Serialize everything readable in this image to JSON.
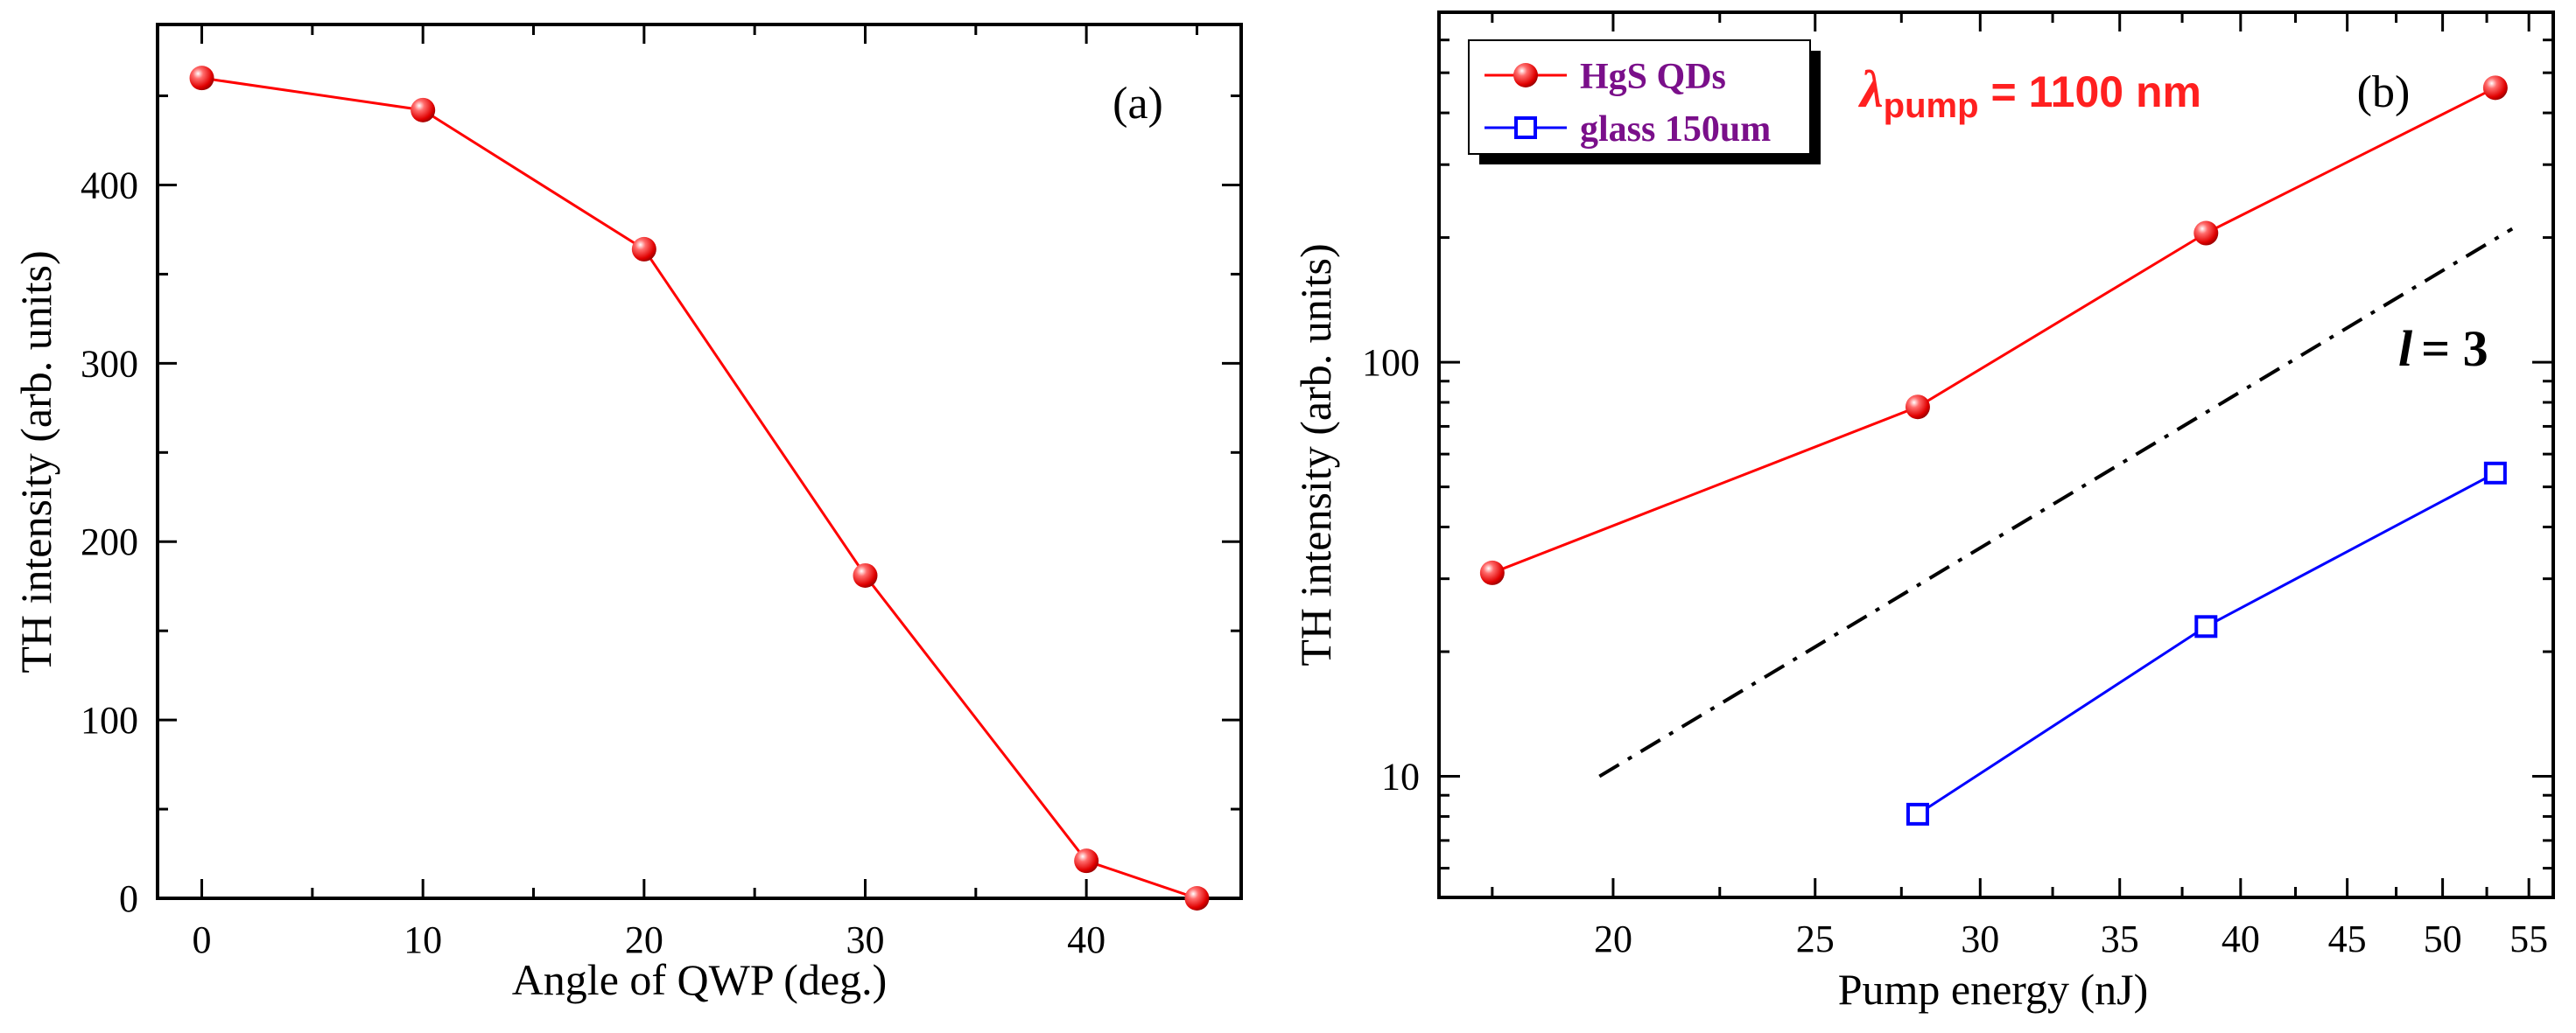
{
  "chart_data": [
    {
      "type": "line",
      "panel_label": "(a)",
      "xlabel": "Angle of QWP (deg.)",
      "ylabel": "TH intensity (arb. units)",
      "xlim": [
        -2,
        47
      ],
      "ylim": [
        0,
        490
      ],
      "xticks": [
        0,
        10,
        20,
        30,
        40
      ],
      "yticks": [
        0,
        100,
        200,
        300,
        400
      ],
      "series": [
        {
          "name": "TH intensity",
          "color": "#ff0000",
          "marker": "sphere",
          "x": [
            0,
            10,
            20,
            30,
            40,
            45
          ],
          "y": [
            460,
            442,
            364,
            181,
            21,
            0
          ]
        }
      ]
    },
    {
      "type": "line",
      "scale": "log-log",
      "panel_label": "(b)",
      "xlabel": "Pump energy (nJ)",
      "ylabel": "TH intensity (arb. units)",
      "xlim": [
        16.5,
        56.5
      ],
      "ylim": [
        5.1,
        700
      ],
      "xticks": [
        20,
        25,
        30,
        35,
        40,
        45,
        50,
        55
      ],
      "yticks": [
        10,
        100
      ],
      "annotation": {
        "lambda_symbol": "λ",
        "lambda_subscript": "pump",
        "lambda_value": "= 1100 nm",
        "slope_symbol": "l",
        "slope_value": "= 3"
      },
      "series": [
        {
          "name": "HgS QDs",
          "color": "#ff0000",
          "marker": "sphere",
          "x": [
            17.5,
            28,
            38.5,
            53
          ],
          "y": [
            31,
            78,
            205,
            460
          ]
        },
        {
          "name": "glass 150um",
          "color": "#0000ff",
          "marker": "open-square",
          "x": [
            28,
            38.5,
            53
          ],
          "y": [
            8.1,
            23,
            54
          ]
        },
        {
          "name": "l = 3 guide",
          "color": "#000000",
          "marker": "none",
          "style": "dash-dot",
          "x": [
            19.7,
            54
          ],
          "y": [
            10,
            210
          ]
        }
      ]
    }
  ]
}
